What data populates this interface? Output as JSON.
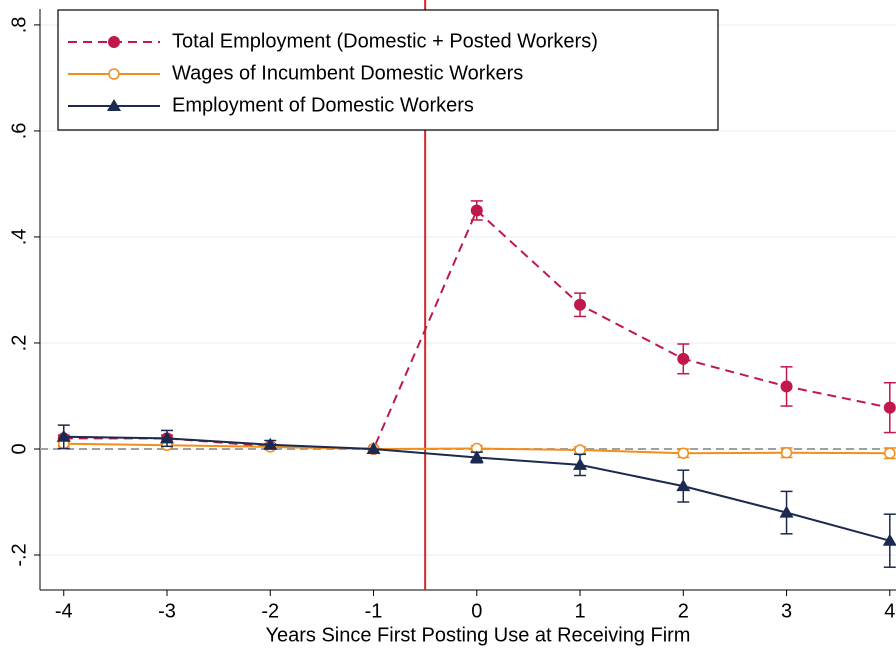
{
  "chart_data": {
    "type": "line",
    "x_label": "Years Since First Posting Use at Receiving Firm",
    "x": [
      -4,
      -3,
      -2,
      -1,
      0,
      1,
      2,
      3,
      4
    ],
    "xlim": [
      -4.23,
      4.06
    ],
    "xticks": [
      -4,
      -3,
      -2,
      -1,
      0,
      1,
      2,
      3,
      4
    ],
    "ylim": [
      -0.266,
      0.83
    ],
    "yticks": [
      {
        "value": -0.2,
        "label": "-.2"
      },
      0,
      {
        "value": 0.2,
        "label": ".2"
      },
      {
        "value": 0.4,
        "label": ".4"
      },
      {
        "value": 0.6,
        "label": ".6"
      },
      {
        "value": 0.8,
        "label": ".8"
      }
    ],
    "grid": true,
    "vline": -0.5,
    "vline_color": "#d62728",
    "hline": 0,
    "legend": "top-left",
    "series": [
      {
        "name": "Total Employment (Domestic + Posted Workers)",
        "color": "#c0184a",
        "dash": true,
        "marker": "circle",
        "values": [
          0.02,
          0.02,
          0.005,
          0,
          0.45,
          0.272,
          0.17,
          0.118,
          0.078
        ],
        "errors": [
          0.006,
          0.006,
          0.005,
          null,
          0.018,
          0.022,
          0.028,
          0.037,
          0.047
        ]
      },
      {
        "name": "Wages of Incumbent Domestic Workers",
        "color": "#f28e1c",
        "dash": false,
        "marker": "circle-open",
        "values": [
          0.01,
          0.007,
          0.004,
          0,
          0.001,
          -0.002,
          -0.008,
          -0.007,
          -0.008
        ],
        "errors": [
          0.005,
          0.004,
          0.004,
          null,
          0.005,
          0.006,
          0.008,
          0.009,
          0.01
        ]
      },
      {
        "name": "Employment of Domestic Workers",
        "color": "#1b2a4e",
        "dash": false,
        "marker": "triangle",
        "values": [
          0.023,
          0.02,
          0.008,
          0,
          -0.016,
          -0.03,
          -0.07,
          -0.12,
          -0.173
        ],
        "errors": [
          0.022,
          0.015,
          0.008,
          null,
          0.01,
          0.02,
          0.03,
          0.04,
          0.05
        ]
      }
    ]
  }
}
